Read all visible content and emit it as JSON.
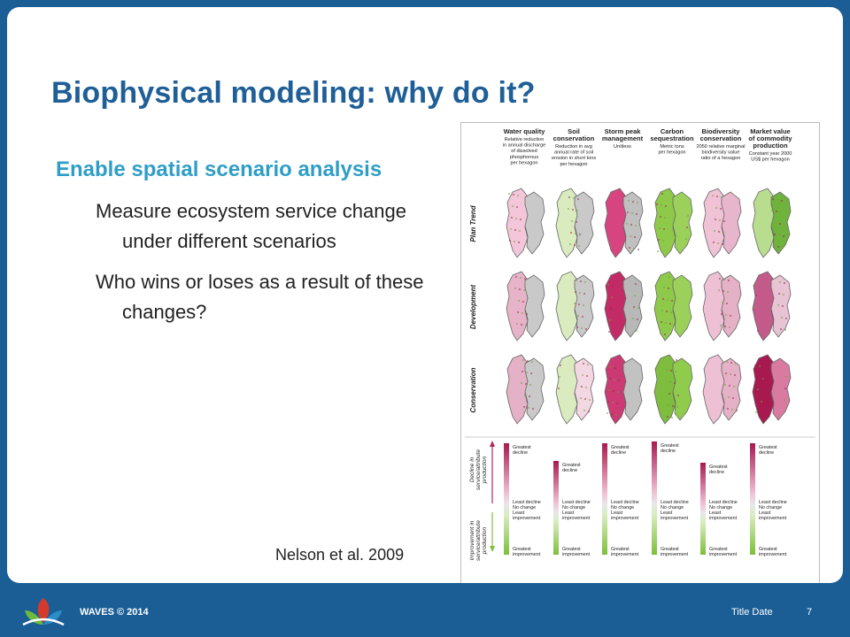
{
  "slide": {
    "title": "Biophysical modeling: why do it?",
    "bullets": [
      {
        "text": "Enable spatial scenario analysis"
      },
      {
        "text": "Measure ecosystem service change under different scenarios"
      },
      {
        "text": "Who wins or loses as a result of these changes?"
      }
    ],
    "citation": "Nelson et al. 2009"
  },
  "figure": {
    "columns": [
      {
        "title": "Water quality",
        "subtitle": [
          "Relative reduction",
          "in annual discharge",
          "of dissolved",
          "phosphorous",
          "per hexagon"
        ]
      },
      {
        "title": "Soil conservation",
        "subtitle": [
          "Reduction in avg",
          "annual rate of soil",
          "erosion in short tons",
          "per hexagon"
        ]
      },
      {
        "title": "Storm peak management",
        "subtitle": [
          "Unitless"
        ]
      },
      {
        "title": "Carbon sequestration",
        "subtitle": [
          "Metric tons",
          "per hexagon"
        ]
      },
      {
        "title": "Biodiversity conservation",
        "subtitle": [
          "2050 relative marginal",
          "biodiversity value",
          "ratio of a hexagon"
        ]
      },
      {
        "title": "Market value of commodity production",
        "subtitle": [
          "Constant year 2000",
          "US$ per hexagon"
        ]
      }
    ],
    "rows": [
      "Plan Trend",
      "Development",
      "Conservation"
    ],
    "legend_left": {
      "top": "Decline in service/attribute production",
      "bottom": "Improvement in service/attribute production"
    },
    "legend_labels": {
      "greatest_decline": "Greatest decline",
      "least_decline": "Least decline",
      "no_change": "No change",
      "least_improvement": "Least improvement",
      "greatest_improvement": "Greatest improvement"
    }
  },
  "footer": {
    "org": "WAVES © 2014",
    "date_label": "Title Date",
    "page_number": "7"
  },
  "colors": {
    "frame_blue": "#1b5e96",
    "title_blue": "#1f5f97",
    "bullet_cyan": "#2f9ec7",
    "decline_magenta": "#b3245f",
    "improvement_green": "#7dbf3a"
  }
}
